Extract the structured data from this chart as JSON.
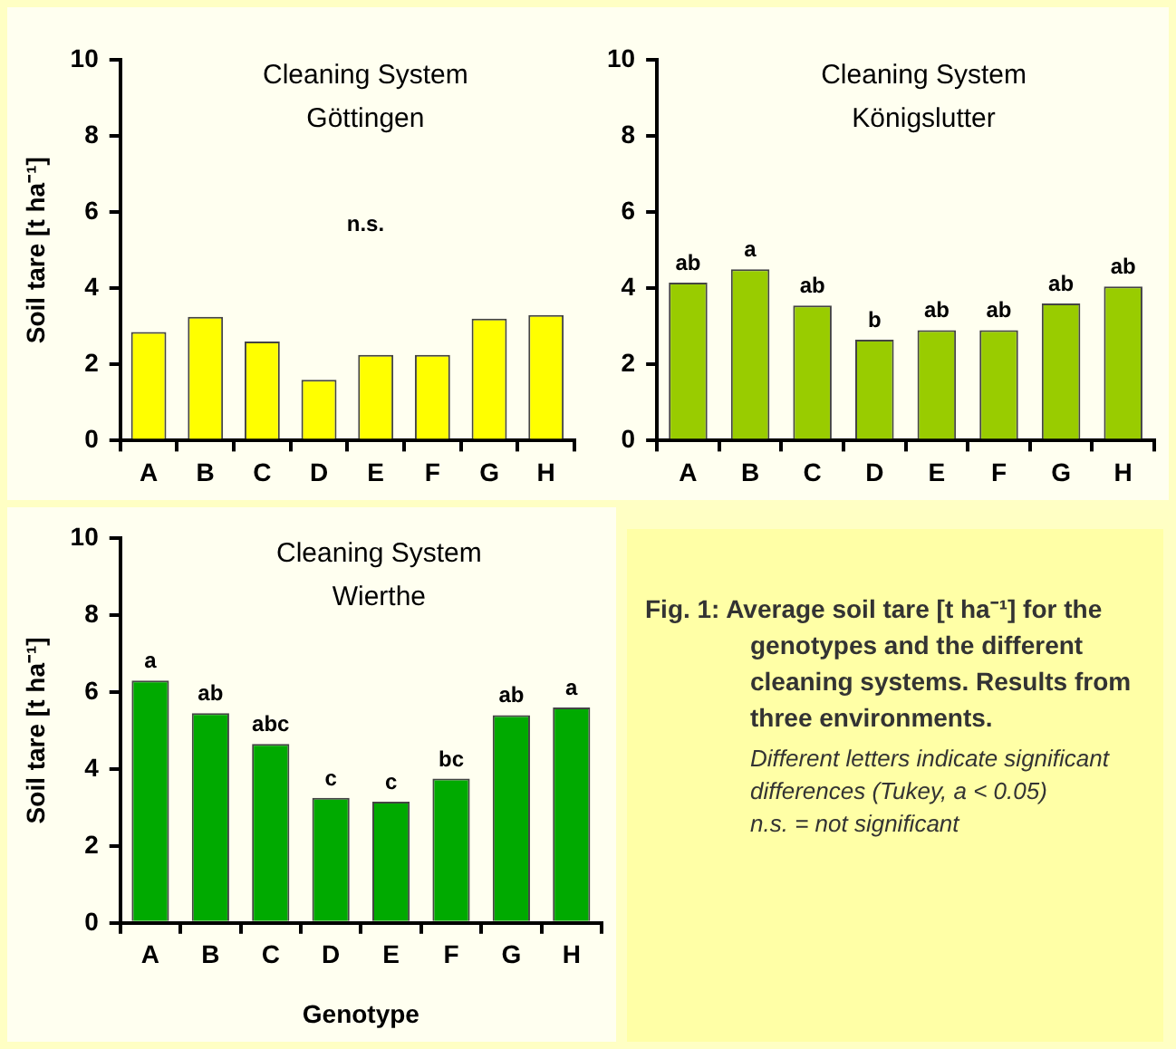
{
  "chart_data": [
    {
      "type": "bar",
      "title": "Cleaning System",
      "subtitle": "Göttingen",
      "ylabel": "Soil tare [t ha⁻¹]",
      "categories": [
        "A",
        "B",
        "C",
        "D",
        "E",
        "F",
        "G",
        "H"
      ],
      "values": [
        2.85,
        3.25,
        2.6,
        1.6,
        2.25,
        2.25,
        3.2,
        3.3
      ],
      "color": "#ffff00",
      "ylim": [
        0,
        10
      ],
      "yticks": [
        0,
        2,
        4,
        6,
        8,
        10
      ],
      "annotations": [
        "n.s."
      ]
    },
    {
      "type": "bar",
      "title": "Cleaning System",
      "subtitle": "Königslutter",
      "categories": [
        "A",
        "B",
        "C",
        "D",
        "E",
        "F",
        "G",
        "H"
      ],
      "values": [
        4.15,
        4.5,
        3.55,
        2.65,
        2.9,
        2.9,
        3.6,
        4.05
      ],
      "value_labels": [
        "ab",
        "a",
        "ab",
        "b",
        "ab",
        "ab",
        "ab",
        "ab"
      ],
      "color": "#99cc00",
      "ylim": [
        0,
        10
      ],
      "yticks": [
        0,
        2,
        4,
        6,
        8,
        10
      ]
    },
    {
      "type": "bar",
      "title": "Cleaning System",
      "subtitle": "Wierthe",
      "ylabel": "Soil tare [t ha⁻¹]",
      "xlabel": "Genotype",
      "categories": [
        "A",
        "B",
        "C",
        "D",
        "E",
        "F",
        "G",
        "H"
      ],
      "values": [
        6.3,
        5.45,
        4.65,
        3.25,
        3.15,
        3.75,
        5.4,
        5.6
      ],
      "value_labels": [
        "a",
        "ab",
        "abc",
        "c",
        "c",
        "bc",
        "ab",
        "a"
      ],
      "color": "#00aa00",
      "ylim": [
        0,
        10
      ],
      "yticks": [
        0,
        2,
        4,
        6,
        8,
        10
      ]
    },
    {
      "type": "other",
      "title": "Fig. 1:  Average soil tare [t ha⁻¹] for the genotypes and the different cleaning systems. Results from three environments.",
      "annotations": [
        "Different letters indicate significant differences (Tukey, a < 0.05)",
        "n.s. = not significant"
      ]
    }
  ]
}
